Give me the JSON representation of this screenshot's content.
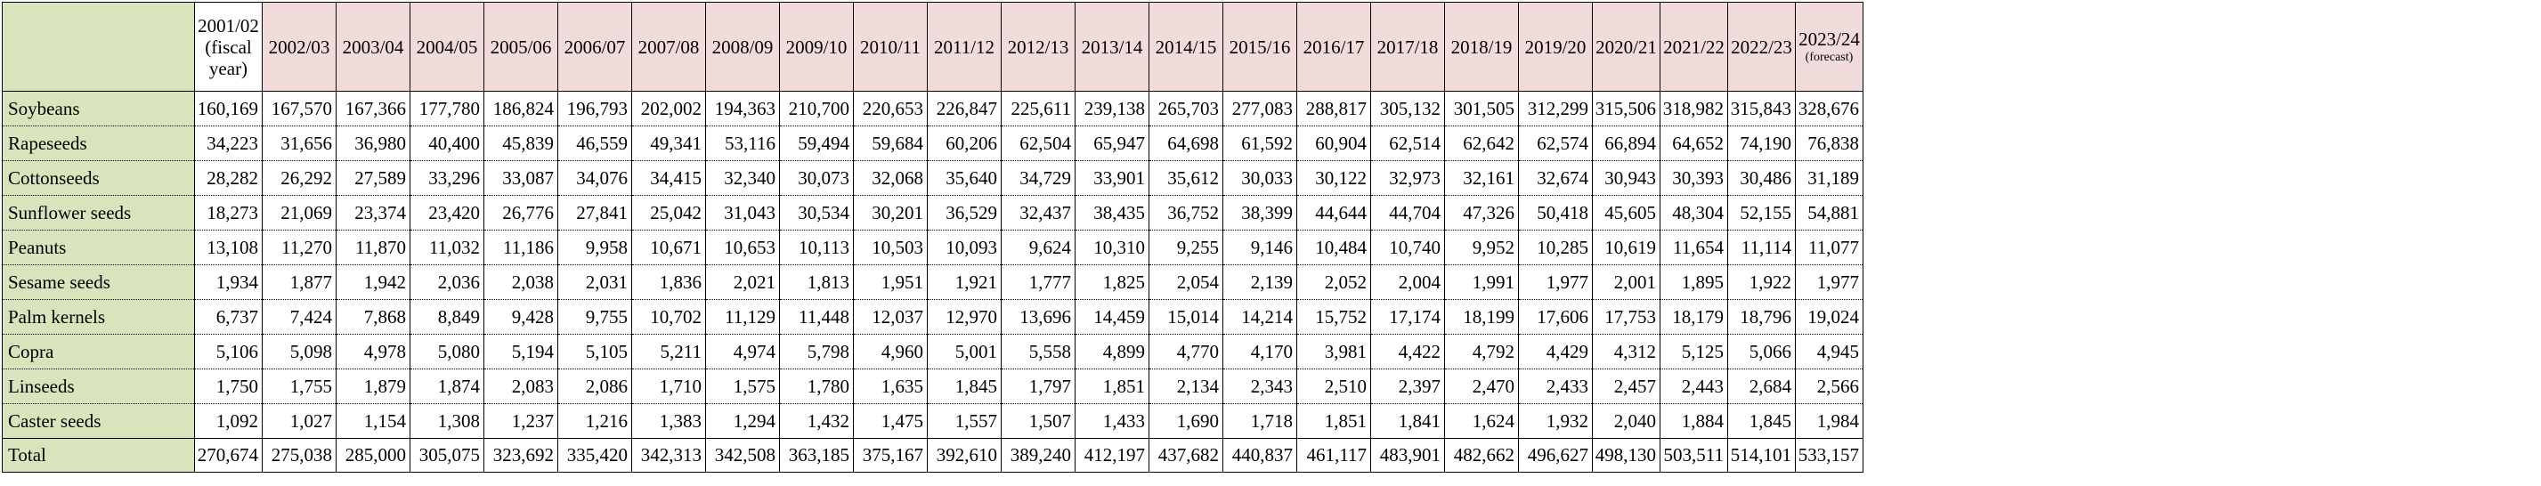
{
  "header": {
    "years": [
      {
        "lines": [
          "2001/02",
          "(fiscal",
          "year)"
        ]
      },
      {
        "lines": [
          "2002/03"
        ]
      },
      {
        "lines": [
          "2003/04"
        ]
      },
      {
        "lines": [
          "2004/05"
        ]
      },
      {
        "lines": [
          "2005/06"
        ]
      },
      {
        "lines": [
          "2006/07"
        ]
      },
      {
        "lines": [
          "2007/08"
        ]
      },
      {
        "lines": [
          "2008/09"
        ]
      },
      {
        "lines": [
          "2009/10"
        ]
      },
      {
        "lines": [
          "2010/11"
        ]
      },
      {
        "lines": [
          "2011/12"
        ]
      },
      {
        "lines": [
          "2012/13"
        ]
      },
      {
        "lines": [
          "2013/14"
        ]
      },
      {
        "lines": [
          "2014/15"
        ]
      },
      {
        "lines": [
          "2015/16"
        ]
      },
      {
        "lines": [
          "2016/17"
        ]
      },
      {
        "lines": [
          "2017/18"
        ]
      },
      {
        "lines": [
          "2018/19"
        ]
      },
      {
        "lines": [
          "2019/20"
        ]
      },
      {
        "lines": [
          "2020/21"
        ]
      },
      {
        "lines": [
          "2021/22"
        ]
      },
      {
        "lines": [
          "2022/23"
        ]
      },
      {
        "lines": [
          "2023/24"
        ],
        "note": "(forecast)"
      }
    ]
  },
  "rows": [
    {
      "label": "Soybeans",
      "values": [
        "160,169",
        "167,570",
        "167,366",
        "177,780",
        "186,824",
        "196,793",
        "202,002",
        "194,363",
        "210,700",
        "220,653",
        "226,847",
        "225,611",
        "239,138",
        "265,703",
        "277,083",
        "288,817",
        "305,132",
        "301,505",
        "312,299",
        "315,506",
        "318,982",
        "315,843",
        "328,676"
      ]
    },
    {
      "label": "Rapeseeds",
      "values": [
        "34,223",
        "31,656",
        "36,980",
        "40,400",
        "45,839",
        "46,559",
        "49,341",
        "53,116",
        "59,494",
        "59,684",
        "60,206",
        "62,504",
        "65,947",
        "64,698",
        "61,592",
        "60,904",
        "62,514",
        "62,642",
        "62,574",
        "66,894",
        "64,652",
        "74,190",
        "76,838"
      ]
    },
    {
      "label": "Cottonseeds",
      "values": [
        "28,282",
        "26,292",
        "27,589",
        "33,296",
        "33,087",
        "34,076",
        "34,415",
        "32,340",
        "30,073",
        "32,068",
        "35,640",
        "34,729",
        "33,901",
        "35,612",
        "30,033",
        "30,122",
        "32,973",
        "32,161",
        "32,674",
        "30,943",
        "30,393",
        "30,486",
        "31,189"
      ]
    },
    {
      "label": "Sunflower seeds",
      "values": [
        "18,273",
        "21,069",
        "23,374",
        "23,420",
        "26,776",
        "27,841",
        "25,042",
        "31,043",
        "30,534",
        "30,201",
        "36,529",
        "32,437",
        "38,435",
        "36,752",
        "38,399",
        "44,644",
        "44,704",
        "47,326",
        "50,418",
        "45,605",
        "48,304",
        "52,155",
        "54,881"
      ]
    },
    {
      "label": "Peanuts",
      "values": [
        "13,108",
        "11,270",
        "11,870",
        "11,032",
        "11,186",
        "9,958",
        "10,671",
        "10,653",
        "10,113",
        "10,503",
        "10,093",
        "9,624",
        "10,310",
        "9,255",
        "9,146",
        "10,484",
        "10,740",
        "9,952",
        "10,285",
        "10,619",
        "11,654",
        "11,114",
        "11,077"
      ]
    },
    {
      "label": "Sesame seeds",
      "values": [
        "1,934",
        "1,877",
        "1,942",
        "2,036",
        "2,038",
        "2,031",
        "1,836",
        "2,021",
        "1,813",
        "1,951",
        "1,921",
        "1,777",
        "1,825",
        "2,054",
        "2,139",
        "2,052",
        "2,004",
        "1,991",
        "1,977",
        "2,001",
        "1,895",
        "1,922",
        "1,977"
      ]
    },
    {
      "label": "Palm kernels",
      "values": [
        "6,737",
        "7,424",
        "7,868",
        "8,849",
        "9,428",
        "9,755",
        "10,702",
        "11,129",
        "11,448",
        "12,037",
        "12,970",
        "13,696",
        "14,459",
        "15,014",
        "14,214",
        "15,752",
        "17,174",
        "18,199",
        "17,606",
        "17,753",
        "18,179",
        "18,796",
        "19,024"
      ]
    },
    {
      "label": "Copra",
      "values": [
        "5,106",
        "5,098",
        "4,978",
        "5,080",
        "5,194",
        "5,105",
        "5,211",
        "4,974",
        "5,798",
        "4,960",
        "5,001",
        "5,558",
        "4,899",
        "4,770",
        "4,170",
        "3,981",
        "4,422",
        "4,792",
        "4,429",
        "4,312",
        "5,125",
        "5,066",
        "4,945"
      ]
    },
    {
      "label": "Linseeds",
      "values": [
        "1,750",
        "1,755",
        "1,879",
        "1,874",
        "2,083",
        "2,086",
        "1,710",
        "1,575",
        "1,780",
        "1,635",
        "1,845",
        "1,797",
        "1,851",
        "2,134",
        "2,343",
        "2,510",
        "2,397",
        "2,470",
        "2,433",
        "2,457",
        "2,443",
        "2,684",
        "2,566"
      ]
    },
    {
      "label": "Caster seeds",
      "values": [
        "1,092",
        "1,027",
        "1,154",
        "1,308",
        "1,237",
        "1,216",
        "1,383",
        "1,294",
        "1,432",
        "1,475",
        "1,557",
        "1,507",
        "1,433",
        "1,690",
        "1,718",
        "1,851",
        "1,841",
        "1,624",
        "1,932",
        "2,040",
        "1,884",
        "1,845",
        "1,984"
      ]
    }
  ],
  "total": {
    "label": "Total",
    "values": [
      "270,674",
      "275,038",
      "285,000",
      "305,075",
      "323,692",
      "335,420",
      "342,313",
      "342,508",
      "363,185",
      "375,167",
      "392,610",
      "389,240",
      "412,197",
      "437,682",
      "440,837",
      "461,117",
      "483,901",
      "482,662",
      "496,627",
      "498,130",
      "503,511",
      "514,101",
      "533,157"
    ]
  },
  "colors": {
    "header_bg": "#f2dcdb",
    "label_bg": "#d7e4bc"
  }
}
